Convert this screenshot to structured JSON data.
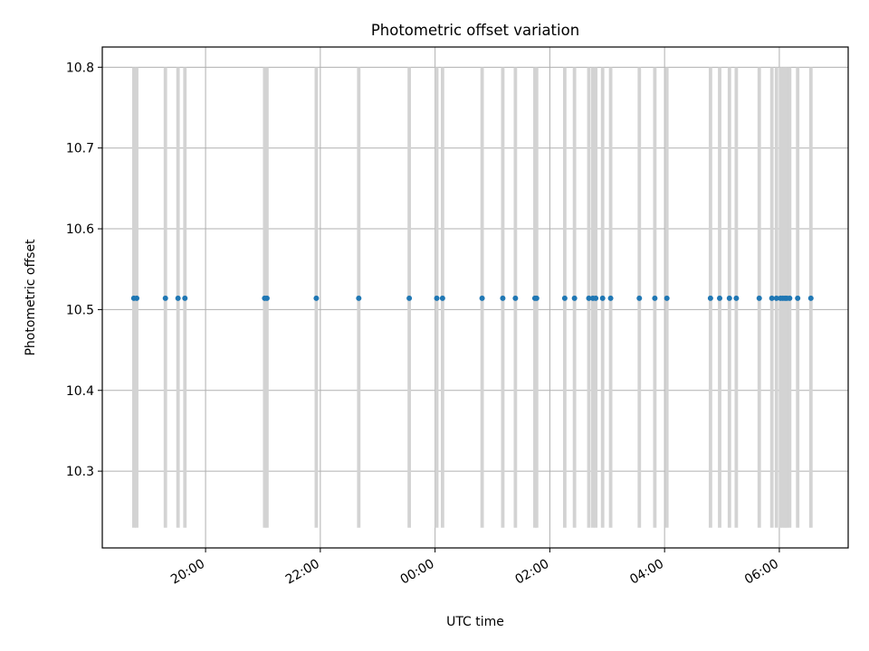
{
  "chart_data": {
    "type": "scatter",
    "title": "Photometric offset variation",
    "xlabel": "UTC time",
    "ylabel": "Photometric offset",
    "x_axis": "time",
    "x_ticks": [
      "20:00",
      "22:00",
      "00:00",
      "02:00",
      "04:00",
      "06:00"
    ],
    "x_tick_hours": [
      20,
      22,
      24,
      26,
      28,
      30
    ],
    "xlim_hours": [
      18.2,
      31.2
    ],
    "y_ticks": [
      10.3,
      10.4,
      10.5,
      10.6,
      10.7,
      10.8
    ],
    "ylim": [
      10.205,
      10.825
    ],
    "grid": true,
    "vlines": {
      "ymin": 10.23,
      "ymax": 10.8,
      "color": "#d3d3d3",
      "x_hours": [
        18.75,
        18.8,
        19.3,
        19.52,
        19.64,
        21.03,
        21.07,
        21.93,
        22.67,
        23.55,
        24.03,
        24.13,
        24.82,
        25.18,
        25.4,
        25.74,
        25.77,
        26.26,
        26.43,
        26.68,
        26.75,
        26.8,
        26.92,
        27.06,
        27.56,
        27.83,
        28.04,
        28.8,
        28.96,
        29.13,
        29.25,
        29.65,
        29.87,
        29.95,
        30.02,
        30.06,
        30.1,
        30.13,
        30.18,
        30.32,
        30.55
      ],
      "width_hours": 0.06
    },
    "series": [
      {
        "color": "#1f77b4",
        "x_hours": [
          18.75,
          18.8,
          19.3,
          19.52,
          19.64,
          21.03,
          21.07,
          21.93,
          22.67,
          23.55,
          24.03,
          24.13,
          24.82,
          25.18,
          25.4,
          25.74,
          25.77,
          26.26,
          26.43,
          26.68,
          26.75,
          26.8,
          26.92,
          27.06,
          27.56,
          27.83,
          28.04,
          28.8,
          28.96,
          29.13,
          29.25,
          29.65,
          29.87,
          29.95,
          30.02,
          30.06,
          30.1,
          30.13,
          30.18,
          30.32,
          30.55
        ],
        "y": 10.514
      }
    ]
  }
}
